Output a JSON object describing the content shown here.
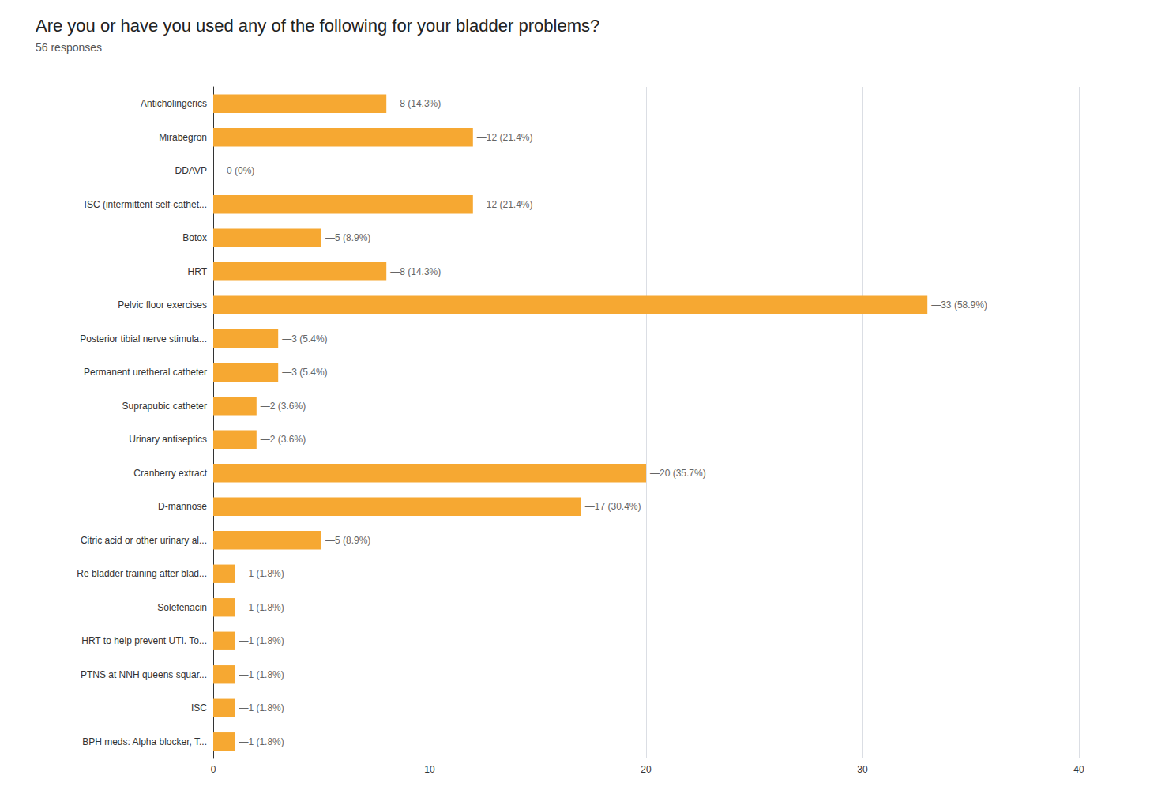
{
  "chart_data": {
    "type": "bar",
    "orientation": "horizontal",
    "title": "Are you or have you used any of the following for your bladder problems?",
    "subtitle": "56 responses",
    "categories": [
      "Anticholingerics",
      "Mirabegron",
      "DDAVP",
      "ISC (intermittent self-cathet...",
      "Botox",
      "HRT",
      "Pelvic floor exercises",
      "Posterior tibial nerve stimula...",
      "Permanent uretheral catheter",
      "Suprapubic catheter",
      "Urinary antiseptics",
      "Cranberry extract",
      "D-mannose",
      "Citric acid or other urinary al...",
      "Re bladder training after blad...",
      "Solefenacin",
      "HRT to help prevent UTI. To...",
      "PTNS at NNH queens squar...",
      "ISC",
      "BPH meds: Alpha blocker, T..."
    ],
    "values": [
      8,
      12,
      0,
      12,
      5,
      8,
      33,
      3,
      3,
      2,
      2,
      20,
      17,
      5,
      1,
      1,
      1,
      1,
      1,
      1
    ],
    "value_labels": [
      "—8 (14.3%)",
      "—12 (21.4%)",
      "—0 (0%)",
      "—12 (21.4%)",
      "—5 (8.9%)",
      "—8 (14.3%)",
      "—33 (58.9%)",
      "—3 (5.4%)",
      "—3 (5.4%)",
      "—2 (3.6%)",
      "—2 (3.6%)",
      "—20 (35.7%)",
      "—17 (30.4%)",
      "—5 (8.9%)",
      "—1 (1.8%)",
      "—1 (1.8%)",
      "—1 (1.8%)",
      "—1 (1.8%)",
      "—1 (1.8%)",
      "—1 (1.8%)"
    ],
    "data_labels": true,
    "color": "#F6A832",
    "xlim": [
      0,
      40
    ],
    "xticks": [
      0,
      10,
      20,
      30,
      40
    ],
    "grid": true
  }
}
